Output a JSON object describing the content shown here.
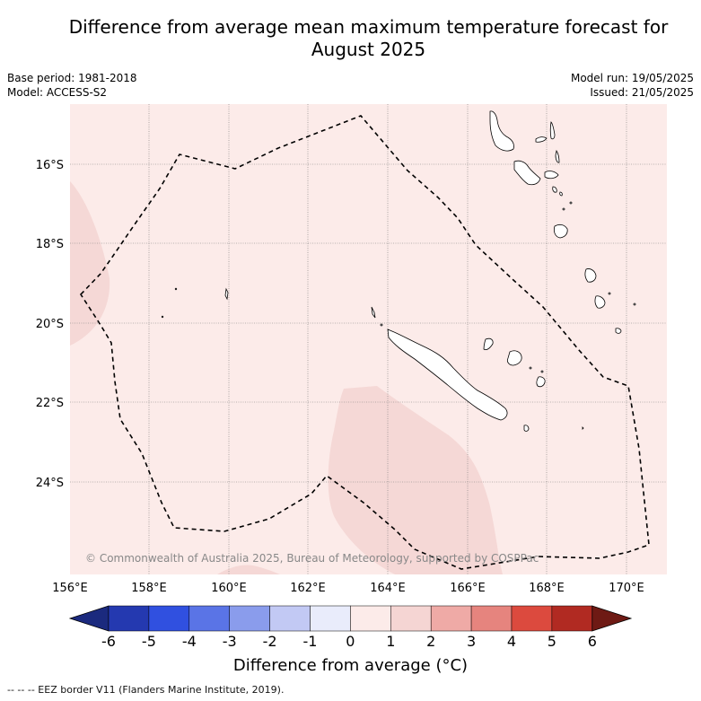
{
  "title": {
    "line1": "Difference from average mean maximum temperature forecast for",
    "line2": "August 2025"
  },
  "meta": {
    "base_period": "Base period: 1981-2018",
    "model": "Model: ACCESS-S2",
    "model_run": "Model run: 19/05/2025",
    "issued": "Issued: 21/05/2025"
  },
  "map": {
    "region": "New Caledonia EEZ",
    "lon_range": [
      156,
      171
    ],
    "lat_range": [
      -26.0,
      -14.5
    ],
    "lon_ticks": [
      "156°E",
      "158°E",
      "160°E",
      "162°E",
      "164°E",
      "166°E",
      "168°E",
      "170°E"
    ],
    "lat_ticks": [
      "16°S",
      "18°S",
      "20°S",
      "22°S",
      "24°S"
    ],
    "background_category": "0 to 1",
    "background_color": "#fcebe9",
    "anomaly_color": "#f5d8d6",
    "copyright": "© Commonwealth of Australia 2025, Bureau of Meteorology, supported by COSPPac"
  },
  "colorbar": {
    "title": "Difference from average (°C)",
    "tick_labels": [
      "-6",
      "-5",
      "-4",
      "-3",
      "-2",
      "-1",
      "0",
      "1",
      "2",
      "3",
      "4",
      "5",
      "6"
    ],
    "colors": [
      "#1b2a7e",
      "#2439b0",
      "#3050e0",
      "#5a74e6",
      "#8a9cec",
      "#c2c9f4",
      "#e9ecfb",
      "#fcebe9",
      "#f5d5d3",
      "#efaaa6",
      "#e6847e",
      "#dc4a3e",
      "#b12a22",
      "#6e1a14"
    ]
  },
  "footnote": "-- -- -- EEZ border V11 (Flanders Marine Institute, 2019)."
}
